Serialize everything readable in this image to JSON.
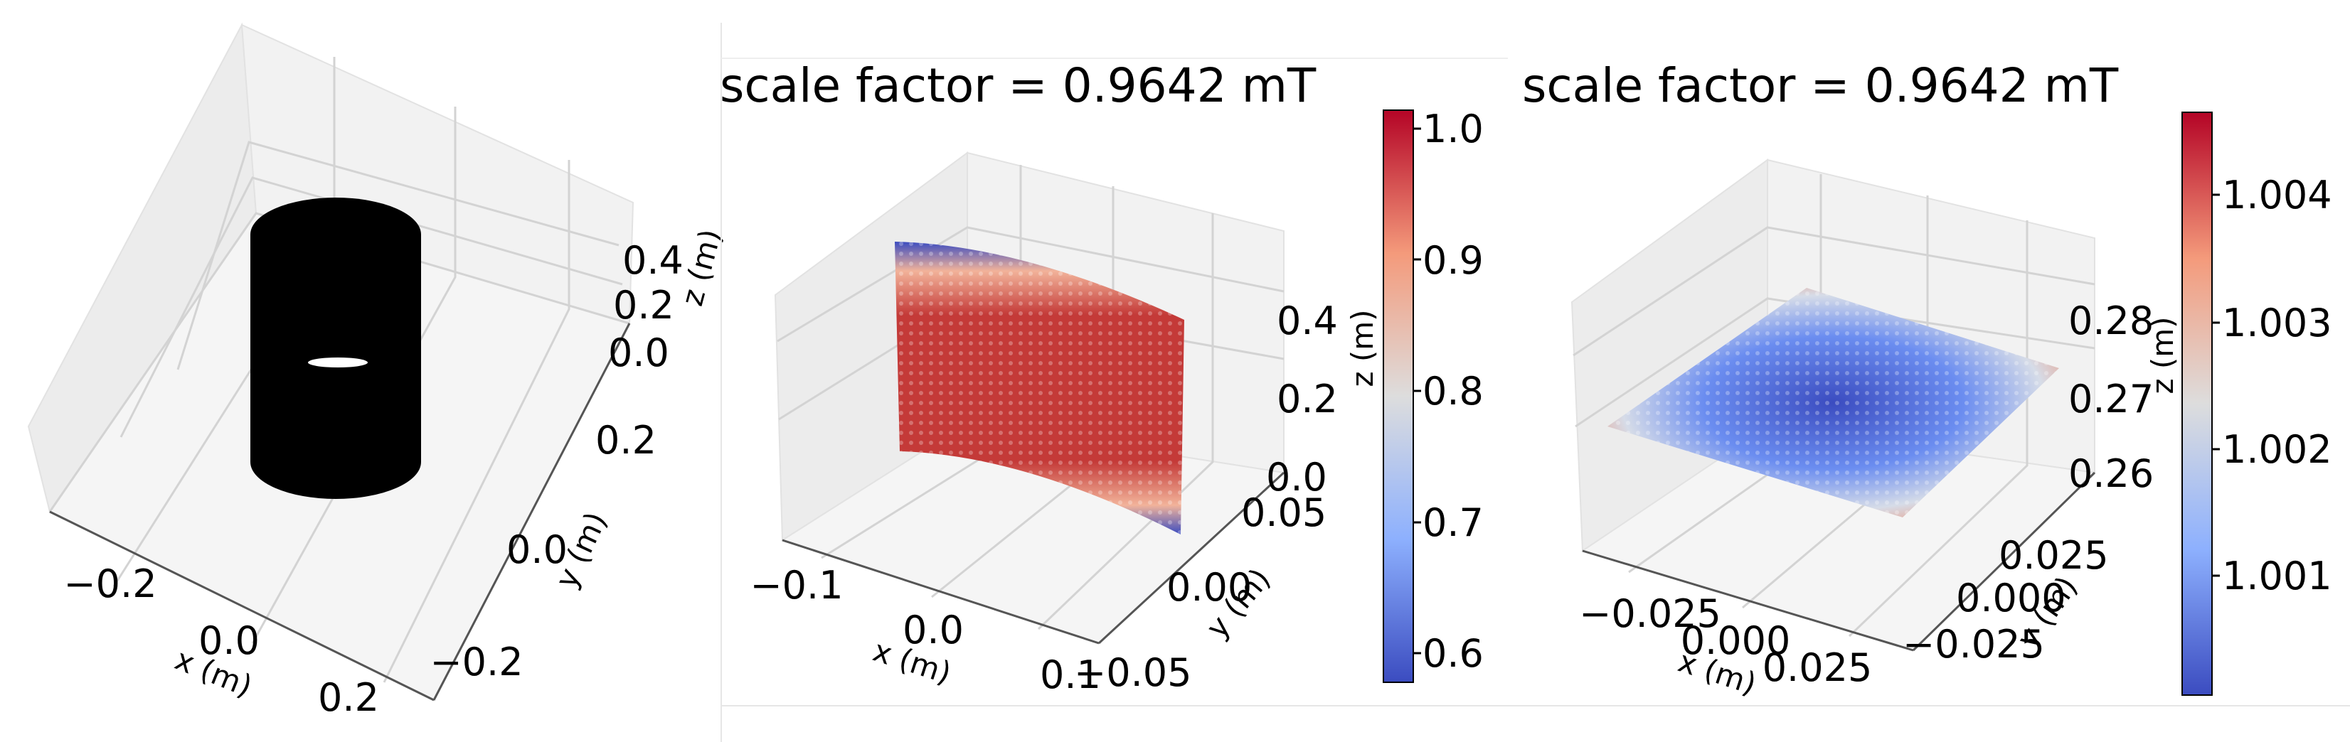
{
  "chart_data": [
    {
      "type": "scatter",
      "projection": "3d",
      "description": "3D layout of coil geometry (black solid cylinder pair with elliptical gap)",
      "xlabel": "x (m)",
      "ylabel": "y (m)",
      "zlabel": "z (m)",
      "x_ticks": [
        "−0.2",
        "0.0",
        "0.2"
      ],
      "y_ticks": [
        "0.2",
        "0.0",
        "−0.2"
      ],
      "z_ticks": [
        "0.4",
        "0.2",
        "0.0"
      ],
      "colors": {
        "coil": "#000000"
      }
    },
    {
      "type": "scatter",
      "projection": "3d",
      "title": "scale factor = 0.9642 mT",
      "description": "Normalized field magnitude on a vertical x-z plane",
      "xlabel": "x (m)",
      "ylabel": "y (m)",
      "zlabel": "z (m)",
      "x_ticks": [
        "−0.1",
        "0.0",
        "0.1"
      ],
      "y_ticks": [
        "0.05",
        "0.00",
        "−0.05"
      ],
      "z_ticks": [
        "0.4",
        "0.2",
        "0.0"
      ],
      "colormap": "coolwarm",
      "colorbar": {
        "min": 0.58,
        "max": 1.02,
        "ticks": [
          "1.0",
          "0.9",
          "0.8",
          "0.7",
          "0.6"
        ]
      },
      "field": {
        "center_value": 0.98,
        "edge_min_value": 0.6
      }
    },
    {
      "type": "scatter",
      "projection": "3d",
      "title": "scale factor = 0.9642 mT",
      "description": "Normalized field magnitude on a horizontal x-y plane",
      "xlabel": "x (m)",
      "ylabel": "y (m)",
      "zlabel": "z (m)",
      "x_ticks": [
        "−0.025",
        "0.000",
        "0.025"
      ],
      "y_ticks": [
        "0.025",
        "0.000",
        "−0.025"
      ],
      "z_ticks": [
        "0.28",
        "0.27",
        "0.26"
      ],
      "colormap": "coolwarm",
      "colorbar": {
        "min": 1.0001,
        "max": 1.0046,
        "ticks": [
          "1.004",
          "1.003",
          "1.002",
          "1.001"
        ]
      },
      "field": {
        "center_value": 1.0001,
        "corner_value": 1.0046
      }
    }
  ]
}
